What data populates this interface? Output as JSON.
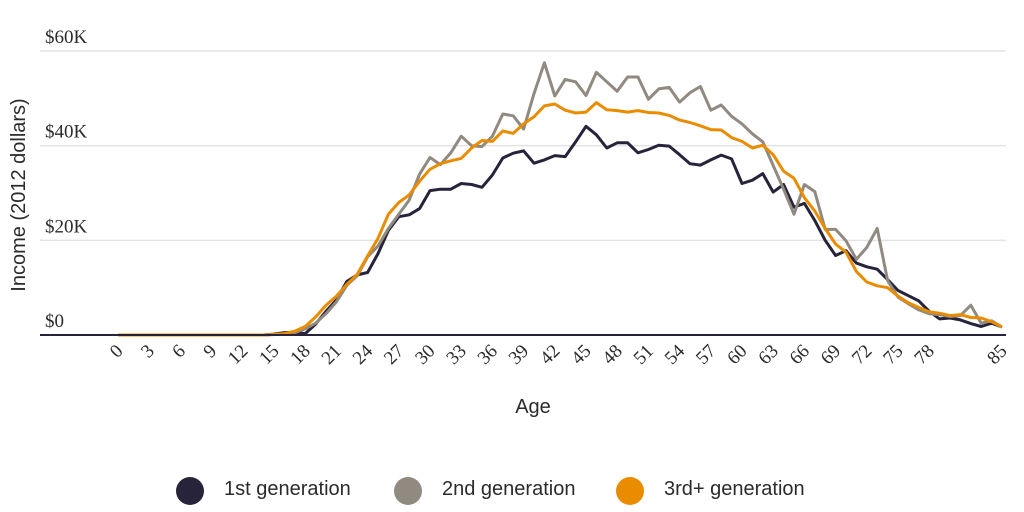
{
  "chart_data": {
    "type": "line",
    "title": "",
    "xlabel": "Age",
    "ylabel": "Income (2012 dollars)",
    "xlim": [
      0,
      85
    ],
    "ylim": [
      0,
      60000
    ],
    "x_tick_labels": [
      "0",
      "3",
      "6",
      "9",
      "12",
      "15",
      "18",
      "21",
      "24",
      "27",
      "30",
      "33",
      "36",
      "39",
      "42",
      "45",
      "48",
      "51",
      "54",
      "57",
      "60",
      "63",
      "66",
      "69",
      "72",
      "75",
      "78",
      "85"
    ],
    "y_ticks": [
      0,
      20000,
      40000,
      60000
    ],
    "y_tick_labels": [
      "$0",
      "$20K",
      "$40K",
      "$60K"
    ],
    "grid": "horizontal",
    "legend_position": "bottom",
    "x": [
      0,
      1,
      2,
      3,
      4,
      5,
      6,
      7,
      8,
      9,
      10,
      11,
      12,
      13,
      14,
      15,
      16,
      17,
      18,
      19,
      20,
      21,
      22,
      23,
      24,
      25,
      26,
      27,
      28,
      29,
      30,
      31,
      32,
      33,
      34,
      35,
      36,
      37,
      38,
      39,
      40,
      41,
      42,
      43,
      44,
      45,
      46,
      47,
      48,
      49,
      50,
      51,
      52,
      53,
      54,
      55,
      56,
      57,
      58,
      59,
      60,
      61,
      62,
      63,
      64,
      65,
      66,
      67,
      68,
      69,
      70,
      71,
      72,
      73,
      74,
      75,
      76,
      77,
      78,
      79,
      80,
      81,
      82,
      83,
      84,
      85
    ],
    "series": [
      {
        "name": "1st generation",
        "color": "#27233a",
        "values": [
          0,
          0,
          0,
          0,
          0,
          0,
          0,
          0,
          0,
          0,
          0,
          0,
          0,
          0,
          0,
          200,
          500,
          600,
          300,
          2300,
          5000,
          7400,
          11300,
          12700,
          13200,
          17200,
          22100,
          25000,
          25400,
          26700,
          30500,
          30800,
          30800,
          32000,
          31800,
          31200,
          33800,
          37400,
          38400,
          38900,
          36300,
          37000,
          37900,
          37700,
          40800,
          44100,
          42300,
          39500,
          40600,
          40600,
          38500,
          39200,
          40100,
          39900,
          38100,
          36200,
          35900,
          37000,
          38000,
          37200,
          32000,
          32700,
          34100,
          30200,
          31800,
          27000,
          27800,
          24200,
          20000,
          16800,
          17800,
          15200,
          14400,
          13900,
          11700,
          9400,
          8300,
          7200,
          5000,
          3400,
          3600,
          3200,
          2400,
          1800,
          2500,
          1700
        ]
      },
      {
        "name": "2nd generation",
        "color": "#918a80",
        "values": [
          0,
          0,
          0,
          0,
          0,
          0,
          0,
          0,
          0,
          0,
          0,
          0,
          0,
          0,
          0,
          100,
          200,
          500,
          1300,
          2500,
          4500,
          7000,
          10500,
          12500,
          16500,
          18800,
          22500,
          25500,
          28500,
          34000,
          37500,
          36000,
          38500,
          42000,
          40000,
          39800,
          42000,
          46700,
          46300,
          43500,
          51000,
          57500,
          50500,
          54000,
          53500,
          50600,
          55500,
          53500,
          51500,
          54500,
          54500,
          49800,
          52000,
          52300,
          49200,
          51200,
          52500,
          47500,
          48600,
          46200,
          44600,
          42500,
          40800,
          35800,
          30800,
          25500,
          31800,
          30300,
          22300,
          22300,
          19900,
          16000,
          18500,
          22500,
          11500,
          8000,
          6600,
          5300,
          4500,
          4300,
          3900,
          4100,
          6300,
          2500,
          3000,
          1700
        ]
      },
      {
        "name": "3rd+ generation",
        "color": "#ea8c00",
        "values": [
          0,
          0,
          0,
          0,
          0,
          0,
          0,
          0,
          0,
          0,
          0,
          0,
          0,
          0,
          0,
          100,
          300,
          800,
          1800,
          3800,
          6300,
          8200,
          10700,
          12800,
          16700,
          20400,
          25500,
          28000,
          29600,
          32500,
          35000,
          36200,
          36800,
          37300,
          39500,
          41100,
          40900,
          43100,
          42600,
          44600,
          46100,
          48400,
          48800,
          47500,
          46900,
          47100,
          49100,
          47600,
          47400,
          47100,
          47400,
          47000,
          46900,
          46400,
          45400,
          44900,
          44200,
          43400,
          43300,
          41700,
          40900,
          39500,
          40100,
          38100,
          34600,
          33100,
          29000,
          26200,
          22500,
          19200,
          17500,
          13400,
          11200,
          10400,
          10000,
          8200,
          6800,
          5800,
          4900,
          4600,
          4100,
          4300,
          3700,
          3600,
          2800,
          1700
        ]
      }
    ]
  },
  "legend": {
    "items": [
      {
        "label": "1st generation",
        "color": "#27233a"
      },
      {
        "label": "2nd generation",
        "color": "#918a80"
      },
      {
        "label": "3rd+ generation",
        "color": "#ea8c00"
      }
    ]
  }
}
